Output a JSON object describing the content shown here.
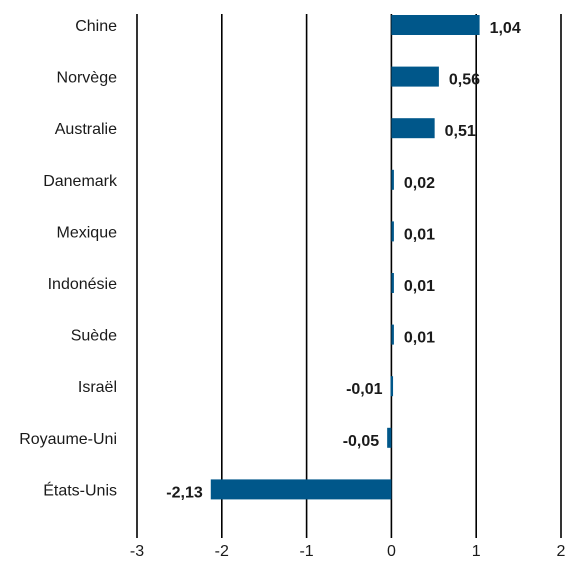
{
  "chart_data": {
    "type": "bar",
    "orientation": "horizontal",
    "categories": [
      "Chine",
      "Norvège",
      "Australie",
      "Danemark",
      "Mexique",
      "Indonésie",
      "Suède",
      "Israël",
      "Royaume-Uni",
      "États-Unis"
    ],
    "values": [
      1.04,
      0.56,
      0.51,
      0.02,
      0.01,
      0.01,
      0.01,
      -0.01,
      -0.05,
      -2.13
    ],
    "data_labels": [
      "1,04",
      "0,56",
      "0,51",
      "0,02",
      "0,01",
      "0,01",
      "0,01",
      "-0,01",
      "-0,05",
      "-2,13"
    ],
    "xlim": [
      -3,
      2
    ],
    "xticks": [
      -3,
      -2,
      -1,
      0,
      1,
      2
    ],
    "xtick_labels": [
      "-3",
      "-2",
      "-1",
      "0",
      "1",
      "2"
    ],
    "grid": "vertical",
    "bar_color": "#00578a"
  }
}
